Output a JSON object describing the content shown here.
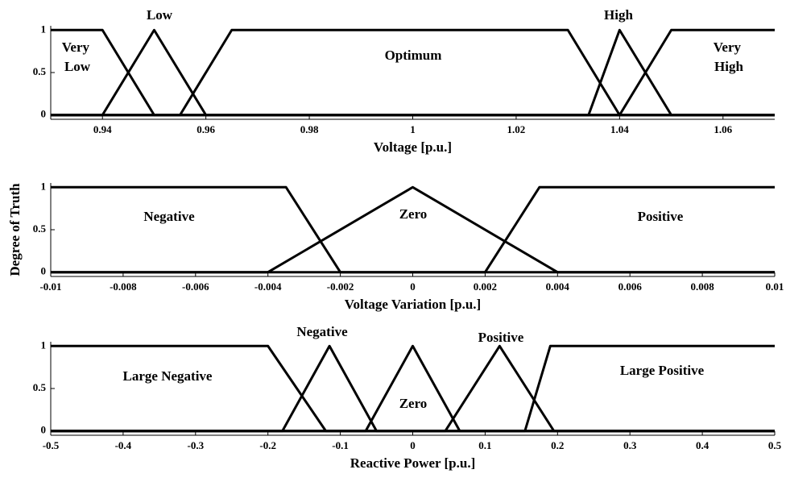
{
  "chart_data": [
    {
      "type": "line",
      "xlabel": "Voltage [p.u.]",
      "color": "#000000",
      "xlim": [
        0.93,
        1.07
      ],
      "ylim": [
        -0.05,
        1.05
      ],
      "xticks": [
        0.94,
        0.96,
        0.98,
        1,
        1.02,
        1.04,
        1.06
      ],
      "yticks": [
        0,
        0.5,
        1
      ],
      "series": [
        {
          "name": "Very Low",
          "x": [
            0.93,
            0.94,
            0.95,
            1.07
          ],
          "values": [
            1,
            1,
            0,
            0
          ]
        },
        {
          "name": "Low",
          "x": [
            0.93,
            0.94,
            0.95,
            0.96,
            1.07
          ],
          "values": [
            0,
            0,
            1,
            0,
            0
          ]
        },
        {
          "name": "Optimum",
          "x": [
            0.93,
            0.955,
            0.965,
            1.03,
            1.04,
            1.07
          ],
          "values": [
            0,
            0,
            1,
            1,
            0,
            0
          ]
        },
        {
          "name": "High",
          "x": [
            0.93,
            1.034,
            1.04,
            1.05,
            1.07
          ],
          "values": [
            0,
            0,
            1,
            0,
            0
          ]
        },
        {
          "name": "Very High",
          "x": [
            0.93,
            1.04,
            1.05,
            1.07
          ],
          "values": [
            0,
            0,
            1,
            1
          ]
        }
      ]
    },
    {
      "type": "line",
      "xlabel": "Voltage Variation [p.u.]",
      "ylabel": "Degree of Truth",
      "color": "#000000",
      "xlim": [
        -0.01,
        0.01
      ],
      "ylim": [
        -0.05,
        1.05
      ],
      "xticks": [
        -0.01,
        -0.008,
        -0.006,
        -0.004,
        -0.002,
        0,
        0.002,
        0.004,
        0.006,
        0.008,
        0.01
      ],
      "yticks": [
        0,
        0.5,
        1
      ],
      "series": [
        {
          "name": "Negative",
          "x": [
            -0.01,
            -0.0035,
            -0.002,
            0.01
          ],
          "values": [
            1,
            1,
            0,
            0
          ]
        },
        {
          "name": "Zero",
          "x": [
            -0.01,
            -0.004,
            0,
            0.004,
            0.01
          ],
          "values": [
            0,
            0,
            1,
            0,
            0
          ]
        },
        {
          "name": "Positive",
          "x": [
            -0.01,
            0.002,
            0.0035,
            0.01
          ],
          "values": [
            0,
            0,
            1,
            1
          ]
        }
      ]
    },
    {
      "type": "line",
      "xlabel": "Reactive Power [p.u.]",
      "color": "#000000",
      "xlim": [
        -0.5,
        0.5
      ],
      "ylim": [
        -0.05,
        1.05
      ],
      "xticks": [
        -0.5,
        -0.4,
        -0.3,
        -0.2,
        -0.1,
        0,
        0.1,
        0.2,
        0.3,
        0.4,
        0.5
      ],
      "yticks": [
        0,
        0.5,
        1
      ],
      "series": [
        {
          "name": "Large Negative",
          "x": [
            -0.5,
            -0.2,
            -0.12,
            0.5
          ],
          "values": [
            1,
            1,
            0,
            0
          ]
        },
        {
          "name": "Negative",
          "x": [
            -0.5,
            -0.18,
            -0.115,
            -0.05,
            0.5
          ],
          "values": [
            0,
            0,
            1,
            0,
            0
          ]
        },
        {
          "name": "Zero",
          "x": [
            -0.5,
            -0.065,
            0,
            0.065,
            0.5
          ],
          "values": [
            0,
            0,
            1,
            0,
            0
          ]
        },
        {
          "name": "Positive",
          "x": [
            -0.5,
            0.045,
            0.12,
            0.195,
            0.5
          ],
          "values": [
            0,
            0,
            1,
            0,
            0
          ]
        },
        {
          "name": "Large Positive",
          "x": [
            -0.5,
            0.155,
            0.19,
            0.5
          ],
          "values": [
            0,
            0,
            1,
            1
          ]
        }
      ]
    }
  ]
}
